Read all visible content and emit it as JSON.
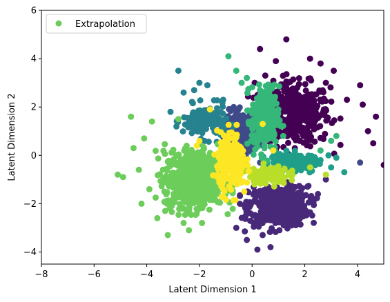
{
  "chart_data": {
    "type": "scatter",
    "title": "",
    "xlabel": "Latent Dimension 1",
    "ylabel": "Latent Dimension 2",
    "xlim": [
      -8,
      5
    ],
    "ylim": [
      -4.5,
      6
    ],
    "xticks": [
      -8,
      -6,
      -4,
      -2,
      0,
      2,
      4
    ],
    "yticks": [
      -4,
      -2,
      0,
      2,
      4,
      6
    ],
    "grid": false,
    "legend": {
      "placement": "top-left",
      "entries": [
        {
          "label": "Extrapolation",
          "color": "#6ccd5a"
        }
      ]
    },
    "clusters": [
      {
        "color": "#440154",
        "center": [
          1.6,
          1.7
        ],
        "spread": [
          0.9,
          0.85
        ],
        "count": 420,
        "extra": [
          [
            0.3,
            4.4
          ],
          [
            1.3,
            4.8
          ],
          [
            2.2,
            4.0
          ],
          [
            3.1,
            3.5
          ],
          [
            4.1,
            2.9
          ],
          [
            4.7,
            1.6
          ],
          [
            4.6,
            0.5
          ],
          [
            5.0,
            -0.4
          ],
          [
            4.4,
            1.0
          ],
          [
            0.9,
            3.9
          ],
          [
            0.5,
            3.3
          ],
          [
            2.8,
            3.0
          ],
          [
            3.6,
            2.3
          ],
          [
            4.2,
            2.1
          ],
          [
            0.1,
            3.0
          ],
          [
            2.6,
            3.8
          ]
        ]
      },
      {
        "color": "#482878",
        "center": [
          1.0,
          -2.1
        ],
        "spread": [
          0.75,
          0.55
        ],
        "count": 500,
        "extra": [
          [
            -0.2,
            -3.5
          ],
          [
            0.2,
            -3.9
          ],
          [
            0.4,
            -3.3
          ],
          [
            -0.6,
            -3.0
          ],
          [
            2.1,
            -1.3
          ],
          [
            2.5,
            -1.6
          ],
          [
            2.8,
            -1.0
          ],
          [
            0.7,
            -3.8
          ],
          [
            1.5,
            -2.9
          ],
          [
            -0.3,
            -2.6
          ]
        ]
      },
      {
        "color": "#3e4a89",
        "center": [
          -0.4,
          0.9
        ],
        "spread": [
          0.4,
          0.6
        ],
        "count": 260,
        "extra": [
          [
            -0.7,
            2.0
          ],
          [
            -0.1,
            1.8
          ],
          [
            0.3,
            -0.3
          ],
          [
            -0.9,
            0.2
          ],
          [
            4.1,
            -0.3
          ],
          [
            -0.5,
            1.6
          ]
        ]
      },
      {
        "color": "#26828e",
        "center": [
          -1.8,
          1.4
        ],
        "spread": [
          0.55,
          0.45
        ],
        "count": 150,
        "extra": [
          [
            -2.8,
            3.5
          ],
          [
            -2.0,
            3.0
          ],
          [
            -1.7,
            2.9
          ],
          [
            -2.2,
            2.7
          ],
          [
            -2.6,
            2.6
          ],
          [
            -3.1,
            1.8
          ],
          [
            -1.1,
            2.3
          ]
        ]
      },
      {
        "color": "#1f9e89",
        "center": [
          1.5,
          -0.3
        ],
        "spread": [
          0.55,
          0.25
        ],
        "count": 180,
        "extra": [
          [
            2.6,
            -0.2
          ],
          [
            3.0,
            -0.5
          ],
          [
            3.5,
            -0.7
          ],
          [
            2.9,
            0.0
          ],
          [
            3.2,
            -0.1
          ]
        ]
      },
      {
        "color": "#35b779",
        "center": [
          0.5,
          1.5
        ],
        "spread": [
          0.35,
          0.9
        ],
        "count": 260,
        "extra": [
          [
            -0.9,
            4.1
          ],
          [
            -0.6,
            3.5
          ],
          [
            -0.2,
            3.2
          ],
          [
            0.3,
            2.7
          ],
          [
            2.6,
            0.2
          ],
          [
            3.0,
            0.6
          ],
          [
            3.2,
            0.8
          ],
          [
            -0.4,
            3.0
          ]
        ]
      },
      {
        "color": "#6ccd5a",
        "center": [
          -2.2,
          -1.0
        ],
        "spread": [
          0.75,
          0.75
        ],
        "count": 720,
        "extra": [
          [
            -5.1,
            -0.8
          ],
          [
            -4.9,
            -0.9
          ],
          [
            -4.2,
            -2.0
          ],
          [
            -4.3,
            -0.6
          ],
          [
            -4.6,
            1.6
          ],
          [
            -3.6,
            -2.6
          ],
          [
            -3.2,
            -3.3
          ],
          [
            -2.6,
            -2.8
          ],
          [
            -2.4,
            -3.1
          ],
          [
            -3.8,
            1.4
          ],
          [
            -4.1,
            0.7
          ],
          [
            -2.8,
            1.5
          ],
          [
            -1.9,
            -2.8
          ],
          [
            -4.5,
            0.3
          ],
          [
            -3.9,
            -1.4
          ],
          [
            -3.3,
            -2.3
          ]
        ]
      },
      {
        "color": "#b8de29",
        "center": [
          0.6,
          -0.8
        ],
        "spread": [
          0.5,
          0.25
        ],
        "count": 110,
        "extra": [
          [
            2.8,
            -0.8
          ],
          [
            2.2,
            -0.5
          ],
          [
            -0.3,
            -0.5
          ]
        ]
      },
      {
        "color": "#fde725",
        "center": [
          -0.8,
          -0.3
        ],
        "spread": [
          0.35,
          0.8
        ],
        "count": 230,
        "extra": [
          [
            -2.0,
            0.6
          ],
          [
            -1.6,
            1.9
          ],
          [
            -1.1,
            -1.4
          ],
          [
            -0.3,
            -1.5
          ],
          [
            0.4,
            1.3
          ],
          [
            -2.1,
            0.4
          ],
          [
            0.8,
            0.2
          ]
        ]
      }
    ]
  }
}
